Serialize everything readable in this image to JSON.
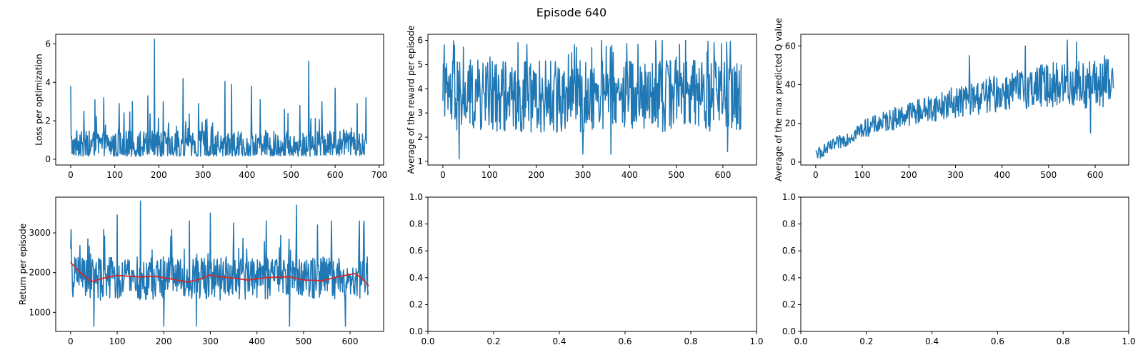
{
  "figure": {
    "suptitle": "Episode 640"
  },
  "colors": {
    "series_blue": "#1f77b4",
    "moving_avg_red": "#d62728",
    "axis": "#000000"
  },
  "chart_data": [
    {
      "id": "loss",
      "type": "line",
      "title": "",
      "xlabel": "",
      "ylabel": "Loss per optimization",
      "xlim": [
        -34,
        710
      ],
      "ylim": [
        -0.3,
        6.5
      ],
      "xticks": [
        0,
        100,
        200,
        300,
        400,
        500,
        600,
        700
      ],
      "yticks": [
        0,
        2,
        4,
        6
      ],
      "series": [
        {
          "color": "#1f77b4",
          "n_points": 672,
          "baseline": 0.7,
          "noise": 0.6,
          "min": 0.15,
          "spikes": [
            [
              0,
              3.8
            ],
            [
              30,
              2.5
            ],
            [
              55,
              3.1
            ],
            [
              75,
              3.2
            ],
            [
              110,
              2.9
            ],
            [
              140,
              3.0
            ],
            [
              175,
              3.3
            ],
            [
              190,
              6.25
            ],
            [
              210,
              3.0
            ],
            [
              255,
              4.2
            ],
            [
              290,
              2.9
            ],
            [
              350,
              4.05
            ],
            [
              365,
              3.9
            ],
            [
              410,
              3.8
            ],
            [
              430,
              3.1
            ],
            [
              485,
              2.6
            ],
            [
              520,
              2.8
            ],
            [
              540,
              5.1
            ],
            [
              570,
              3.0
            ],
            [
              600,
              3.7
            ],
            [
              650,
              2.9
            ],
            [
              670,
              3.2
            ]
          ]
        }
      ]
    },
    {
      "id": "avg-reward",
      "type": "line",
      "title": "",
      "xlabel": "",
      "ylabel": "Average of the reward per episode",
      "xlim": [
        -32,
        672
      ],
      "ylim": [
        0.85,
        6.25
      ],
      "xticks": [
        0,
        100,
        200,
        300,
        400,
        500,
        600
      ],
      "yticks": [
        1,
        2,
        3,
        4,
        5,
        6
      ],
      "series": [
        {
          "color": "#1f77b4",
          "n_points": 640,
          "baseline": 3.7,
          "noise": 1.15,
          "min": 1.1,
          "max": 6.0,
          "spikes": [
            [
              0,
              3.5
            ],
            [
              35,
              1.1
            ],
            [
              300,
              1.3
            ],
            [
              340,
              6.0
            ],
            [
              360,
              1.3
            ],
            [
              470,
              6.0
            ],
            [
              520,
              6.0
            ],
            [
              610,
              1.4
            ]
          ]
        }
      ]
    },
    {
      "id": "max-q",
      "type": "line",
      "title": "",
      "xlabel": "",
      "ylabel": "Average of the max predicted Q value",
      "xlim": [
        -32,
        672
      ],
      "ylim": [
        -1.5,
        66
      ],
      "xticks": [
        0,
        100,
        200,
        300,
        400,
        500,
        600
      ],
      "yticks": [
        0,
        20,
        40,
        60
      ],
      "series": [
        {
          "color": "#1f77b4",
          "n_points": 640,
          "trend": [
            [
              0,
              4
            ],
            [
              50,
              10
            ],
            [
              100,
              17
            ],
            [
              200,
              25
            ],
            [
              300,
              31
            ],
            [
              400,
              36
            ],
            [
              500,
              40
            ],
            [
              640,
              40
            ]
          ],
          "noise_start": 2,
          "noise_end": 10,
          "min": 2,
          "max": 63,
          "spikes": [
            [
              10,
              2
            ],
            [
              330,
              55
            ],
            [
              450,
              60
            ],
            [
              540,
              63
            ],
            [
              560,
              62
            ],
            [
              590,
              15
            ],
            [
              620,
              55
            ]
          ]
        }
      ]
    },
    {
      "id": "return",
      "type": "line",
      "title": "",
      "xlabel": "",
      "ylabel": "Return per episode",
      "xlim": [
        -32,
        672
      ],
      "ylim": [
        520,
        3900
      ],
      "xticks": [
        0,
        100,
        200,
        300,
        400,
        500,
        600
      ],
      "yticks": [
        1000,
        2000,
        3000
      ],
      "series": [
        {
          "color": "#1f77b4",
          "n_points": 640,
          "baseline": 1850,
          "noise": 420,
          "min": 650,
          "max": 3800,
          "spikes": [
            [
              0,
              2600
            ],
            [
              50,
              650
            ],
            [
              100,
              3450
            ],
            [
              150,
              3800
            ],
            [
              200,
              650
            ],
            [
              255,
              3300
            ],
            [
              270,
              650
            ],
            [
              300,
              3500
            ],
            [
              350,
              3250
            ],
            [
              420,
              3300
            ],
            [
              470,
              650
            ],
            [
              485,
              3700
            ],
            [
              530,
              3200
            ],
            [
              560,
              3300
            ],
            [
              590,
              650
            ],
            [
              620,
              3300
            ],
            [
              630,
              3300
            ]
          ]
        },
        {
          "color": "#d62728",
          "smooth": [
            [
              0,
              2250
            ],
            [
              20,
              2000
            ],
            [
              45,
              1760
            ],
            [
              70,
              1850
            ],
            [
              100,
              1920
            ],
            [
              150,
              1880
            ],
            [
              180,
              1900
            ],
            [
              220,
              1820
            ],
            [
              250,
              1750
            ],
            [
              280,
              1830
            ],
            [
              300,
              1930
            ],
            [
              320,
              1880
            ],
            [
              350,
              1850
            ],
            [
              380,
              1800
            ],
            [
              420,
              1860
            ],
            [
              470,
              1880
            ],
            [
              500,
              1800
            ],
            [
              540,
              1780
            ],
            [
              570,
              1870
            ],
            [
              610,
              1960
            ],
            [
              625,
              1850
            ],
            [
              640,
              1650
            ]
          ]
        }
      ]
    },
    {
      "id": "empty-1",
      "type": "line",
      "title": "",
      "xlabel": "",
      "ylabel": "",
      "xlim": [
        0,
        1
      ],
      "ylim": [
        0,
        1
      ],
      "xticks": [
        0.0,
        0.2,
        0.4,
        0.6,
        0.8,
        1.0
      ],
      "yticks": [
        0.0,
        0.2,
        0.4,
        0.6,
        0.8,
        1.0
      ],
      "series": []
    },
    {
      "id": "empty-2",
      "type": "line",
      "title": "",
      "xlabel": "",
      "ylabel": "",
      "xlim": [
        0,
        1
      ],
      "ylim": [
        0,
        1
      ],
      "xticks": [
        0.0,
        0.2,
        0.4,
        0.6,
        0.8,
        1.0
      ],
      "yticks": [
        0.0,
        0.2,
        0.4,
        0.6,
        0.8,
        1.0
      ],
      "series": []
    }
  ]
}
